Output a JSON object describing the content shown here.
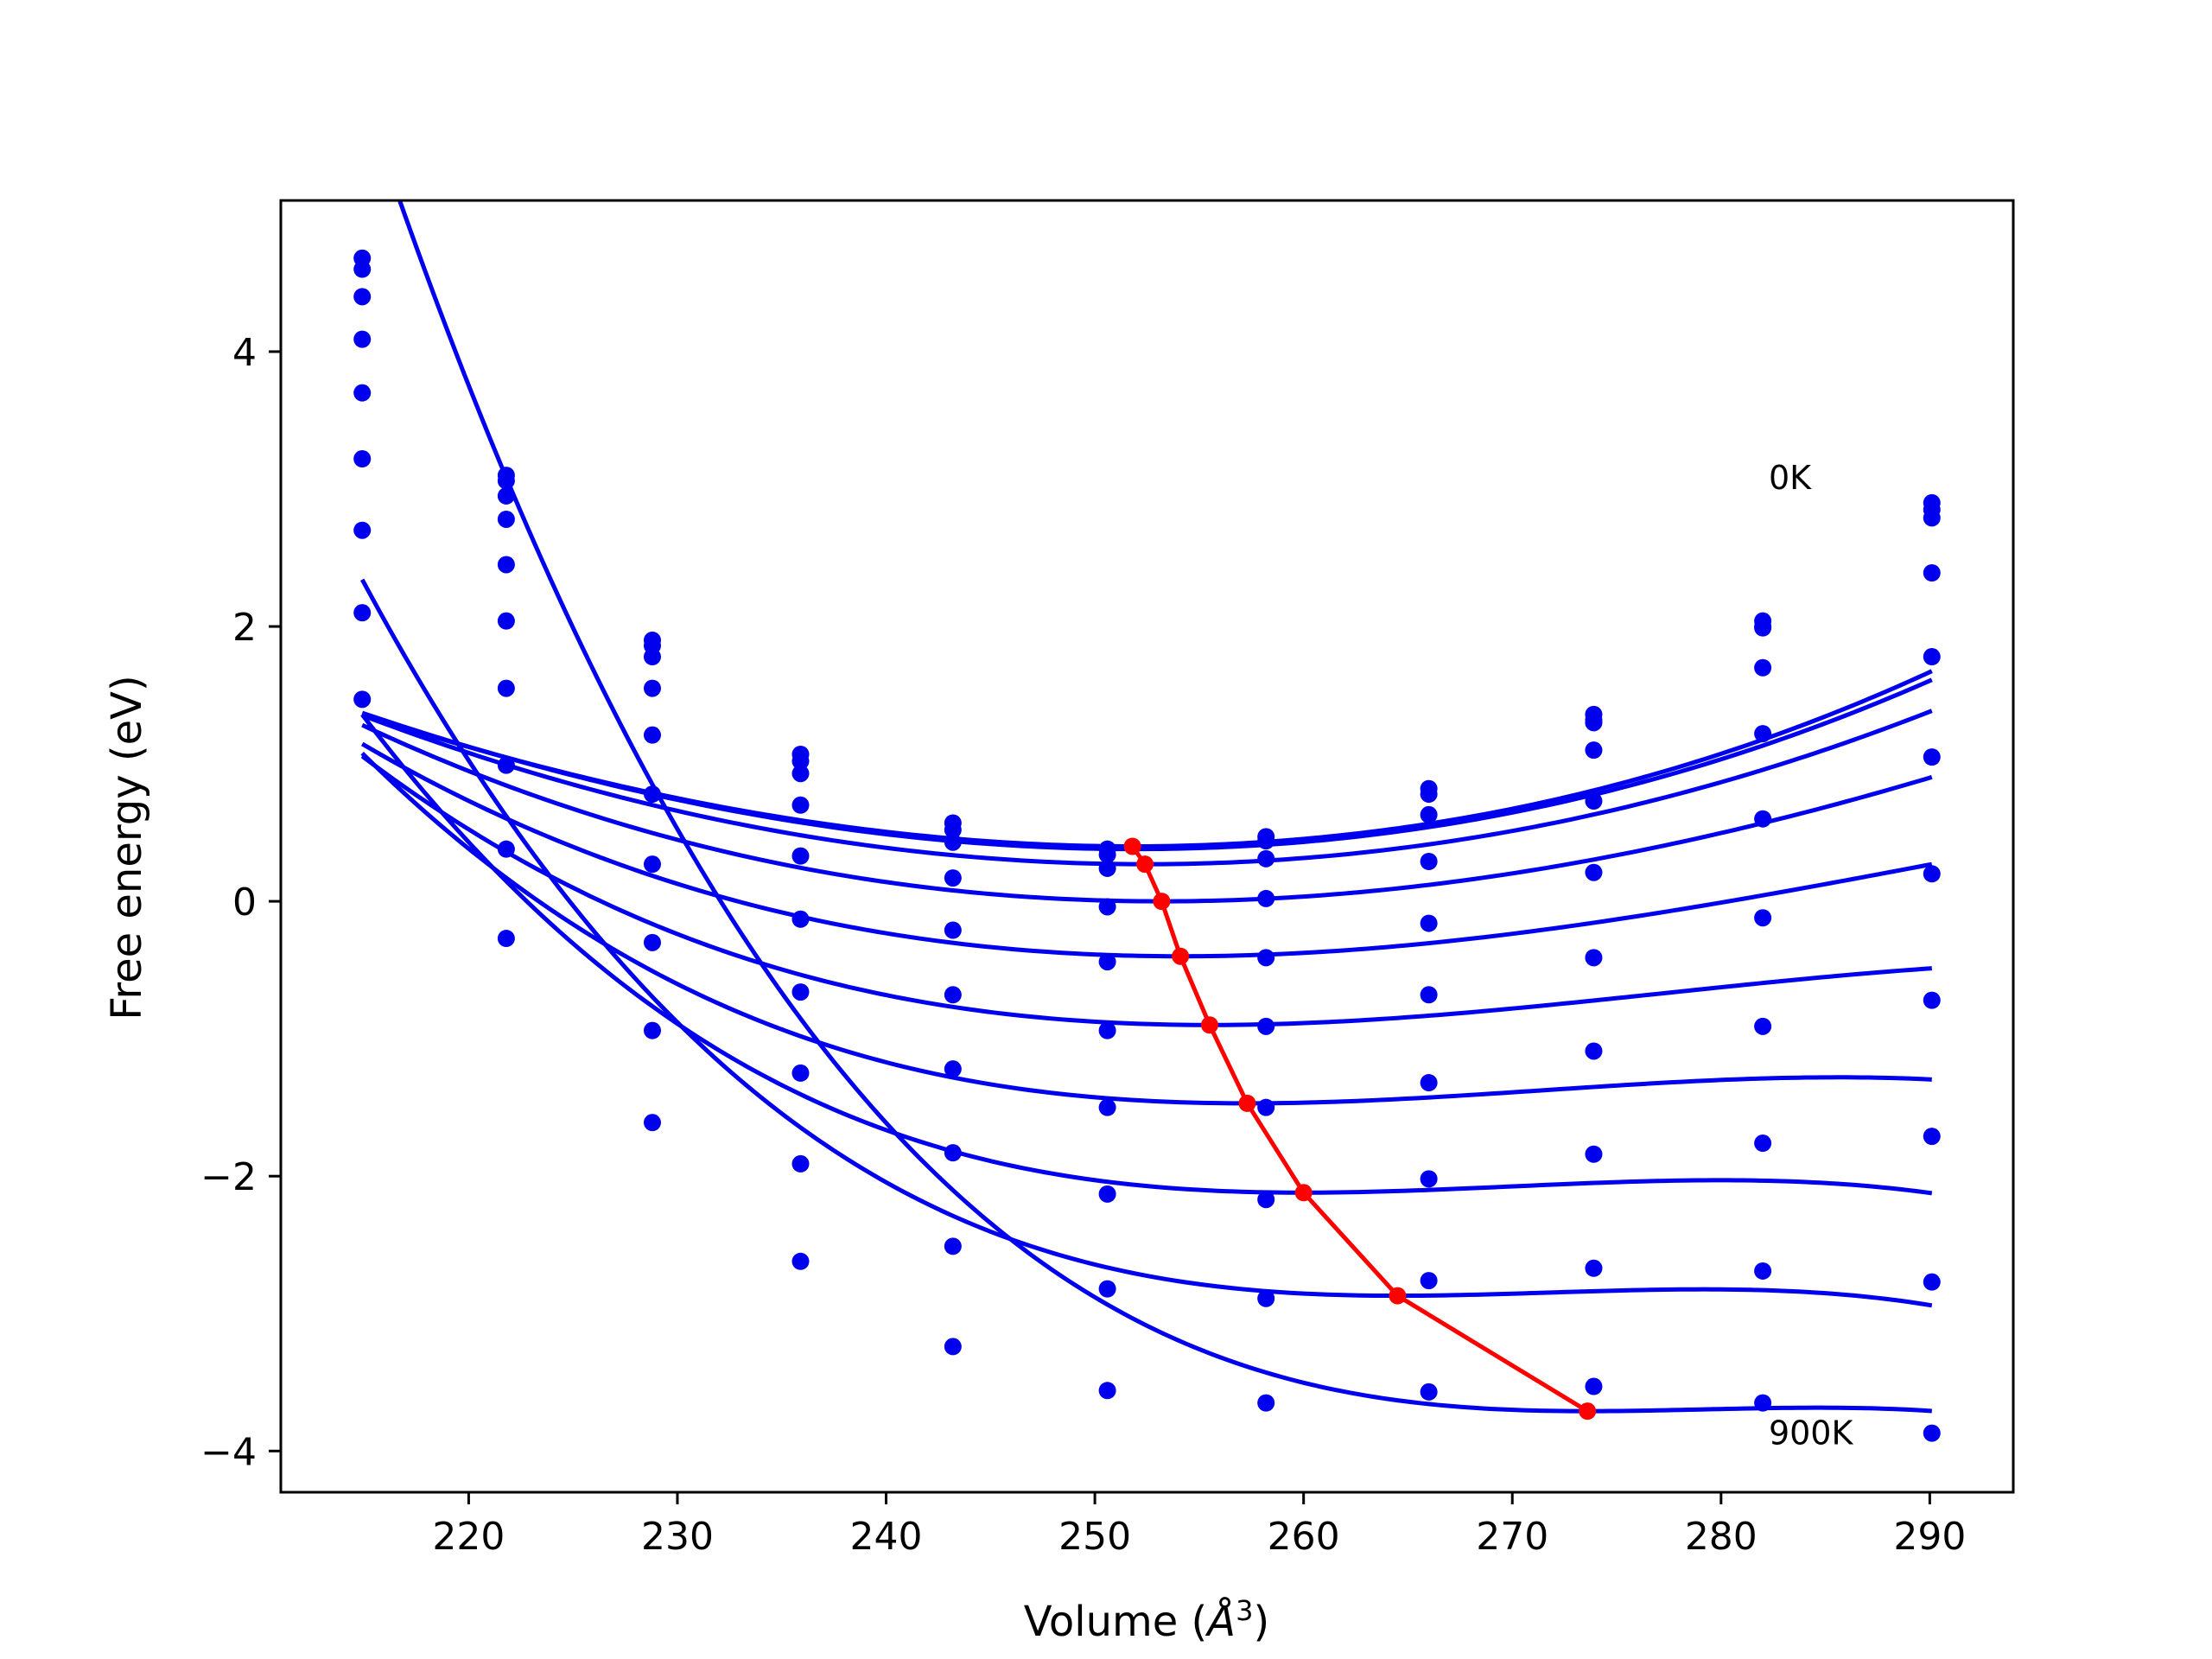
{
  "chart_data": {
    "type": "line",
    "title": "",
    "xlabel": "Volume (",
    "xlabel_unit": "Å",
    "xlabel_exp": "3",
    "xlabel_close": ")",
    "ylabel": "Free energy (eV)",
    "xlim": [
      211,
      294
    ],
    "ylim": [
      -4.3,
      5.1
    ],
    "xticks": [
      220,
      230,
      240,
      250,
      260,
      270,
      280,
      290
    ],
    "xtick_labels": [
      "220",
      "230",
      "240",
      "250",
      "260",
      "270",
      "280",
      "290"
    ],
    "yticks": [
      -4,
      -2,
      0,
      2,
      4
    ],
    "ytick_labels": [
      "−4",
      "−2",
      "0",
      "2",
      "4"
    ],
    "grid": false,
    "annotations": [
      {
        "text": "0K",
        "x": 283.3,
        "y": 3.0
      },
      {
        "text": "900K",
        "x": 284.3,
        "y": -3.95
      }
    ],
    "volumes": [
      214.9,
      221.8,
      228.8,
      235.9,
      243.2,
      250.6,
      258.2,
      266.0,
      273.9,
      282.0,
      290.1
    ],
    "fit_x_range": [
      214.9,
      290.1
    ],
    "curve_color": "#0000ee",
    "minimum_color": "#ff0000",
    "series": [
      {
        "points": [
          4.68,
          3.1,
          1.9,
          1.07,
          0.57,
          0.38,
          0.47,
          0.82,
          1.36,
          2.04,
          2.9
        ],
        "fit": {
          "e0": 0.4,
          "v0": 251.8,
          "a": 0.000785,
          "b": 2.2e-06
        }
      },
      {
        "points": [
          4.6,
          3.06,
          1.86,
          1.02,
          0.52,
          0.34,
          0.44,
          0.78,
          1.32,
          2.0,
          2.85
        ],
        "fit": {
          "e0": 0.38,
          "v0": 251.9,
          "a": 0.000783,
          "b": 1.6e-06
        }
      },
      {
        "points": [
          4.4,
          2.95,
          1.78,
          0.93,
          0.43,
          0.24,
          0.31,
          0.63,
          1.3,
          1.99,
          2.79
        ],
        "fit": {
          "e0": 0.27,
          "v0": 252.4,
          "a": 0.000778,
          "b": 2e-07
        }
      },
      {
        "points": [
          4.09,
          2.78,
          1.55,
          0.7,
          0.17,
          -0.04,
          0.02,
          0.29,
          1.1,
          1.7,
          2.39
        ],
        "fit": {
          "e0": 0.0,
          "v0": 253.2,
          "a": 0.000767,
          "b": -2.8e-06
        }
      },
      {
        "points": [
          3.7,
          2.45,
          1.21,
          0.33,
          -0.21,
          -0.44,
          -0.41,
          -0.16,
          0.73,
          1.22,
          1.78
        ],
        "fit": {
          "e0": -0.4,
          "v0": 254.1,
          "a": 0.000751,
          "b": -6.5e-06
        }
      },
      {
        "points": [
          3.22,
          2.04,
          0.78,
          -0.13,
          -0.68,
          -0.94,
          -0.91,
          -0.68,
          0.21,
          0.6,
          1.05
        ],
        "fit": {
          "e0": -0.9,
          "v0": 255.5,
          "a": 0.000732,
          "b": -1.12e-05
        }
      },
      {
        "points": [
          2.7,
          1.55,
          0.27,
          -0.66,
          -1.22,
          -1.5,
          -1.5,
          -1.32,
          -0.41,
          -0.12,
          0.2
        ],
        "fit": {
          "e0": -1.47,
          "v0": 257.3,
          "a": 0.000709,
          "b": -1.67e-05
        }
      },
      {
        "points": [
          2.1,
          0.99,
          -0.3,
          -1.25,
          -1.83,
          -2.13,
          -2.17,
          -2.02,
          -1.09,
          -0.91,
          -0.72
        ],
        "fit": {
          "e0": -2.12,
          "v0": 260.0,
          "a": 0.000682,
          "b": -2.28e-05
        }
      },
      {
        "points": [
          1.47,
          0.38,
          -0.94,
          -1.91,
          -2.51,
          -2.82,
          -2.89,
          -2.76,
          -1.84,
          -1.76,
          -1.71
        ],
        "fit": {
          "e0": -2.87,
          "v0": 264.5,
          "a": 0.00065,
          "b": -2.96e-05
        }
      },
      {
        "points": [
          null,
          -0.27,
          -1.61,
          -2.62,
          -3.24,
          -3.56,
          -3.65,
          -3.57,
          -2.67,
          -2.69,
          -2.77
        ],
        "fit": {
          "e0": -3.71,
          "v0": 273.6,
          "a": 0.000615,
          "b": -3.7e-05
        }
      },
      {
        "points": [
          null,
          null,
          null,
          null,
          null,
          null,
          null,
          null,
          -3.53,
          -3.65,
          -3.87
        ],
        "fit": null
      }
    ],
    "minimum_line": {
      "x": [
        251.8,
        252.4,
        253.2,
        254.1,
        255.5,
        257.3,
        260.0,
        264.5,
        273.6
      ],
      "y": [
        0.4,
        0.27,
        0.0,
        -0.4,
        -0.9,
        -1.47,
        -2.12,
        -2.87,
        -3.71
      ]
    }
  }
}
